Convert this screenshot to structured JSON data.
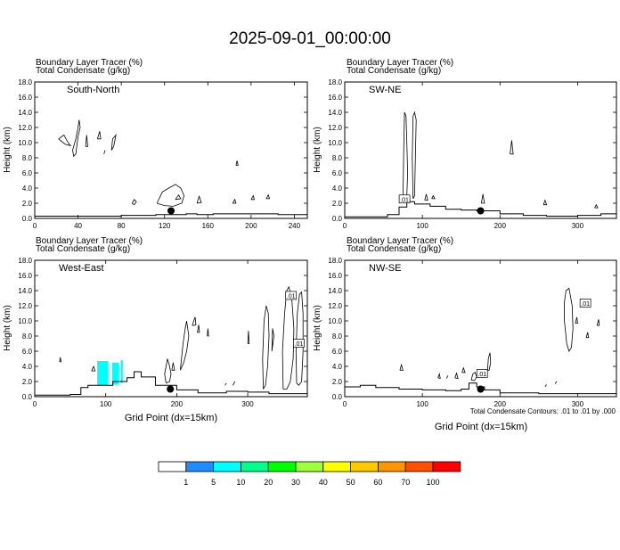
{
  "main_title": "2025-09-01_00:00:00",
  "panel_header": {
    "line1": "Boundary Layer Tracer   (%)",
    "line2": "Total Condensate   (g/kg)"
  },
  "xlabel": "Grid Point (dx=15km)",
  "ylabel": "Height (km)",
  "contour_note": "Total Condensate Contours: .01 to .01 by .000",
  "colorbar": {
    "levels": [
      "1",
      "5",
      "10",
      "20",
      "30",
      "40",
      "50",
      "60",
      "70",
      "100"
    ],
    "colors": [
      "#ffffff",
      "#1e8cff",
      "#00ffff",
      "#00ff8c",
      "#00ff00",
      "#a0ff3c",
      "#ffff00",
      "#ffc800",
      "#ff9600",
      "#ff5000",
      "#ff0000"
    ]
  },
  "chart_data": [
    {
      "type": "line",
      "title": "South-North",
      "xlim": [
        0,
        252
      ],
      "ylim": [
        0,
        18
      ],
      "xticks": [
        0,
        40,
        80,
        120,
        160,
        200,
        240
      ],
      "yticks": [
        0,
        2,
        4,
        6,
        8,
        10,
        12,
        14,
        16,
        18
      ],
      "terrain": [
        [
          0,
          0.3
        ],
        [
          60,
          0.3
        ],
        [
          80,
          0.4
        ],
        [
          100,
          0.4
        ],
        [
          112,
          0.5
        ],
        [
          125,
          0.5
        ],
        [
          140,
          0.6
        ],
        [
          150,
          0.5
        ],
        [
          165,
          0.6
        ],
        [
          200,
          0.6
        ],
        [
          225,
          0.5
        ],
        [
          252,
          0.5
        ]
      ],
      "marker": {
        "x": 126,
        "y": 1.0
      },
      "contour_labels": [],
      "tracer_fill": []
    },
    {
      "type": "line",
      "title": "SW-NE",
      "xlim": [
        0,
        350
      ],
      "ylim": [
        0,
        18
      ],
      "xticks": [
        0,
        100,
        200,
        300
      ],
      "yticks": [
        0,
        2,
        4,
        6,
        8,
        10,
        12,
        14,
        16,
        18
      ],
      "terrain": [
        [
          0,
          0.2
        ],
        [
          40,
          0.2
        ],
        [
          55,
          0.5
        ],
        [
          70,
          1.5
        ],
        [
          80,
          2.2
        ],
        [
          90,
          1.9
        ],
        [
          110,
          1.6
        ],
        [
          130,
          1.2
        ],
        [
          150,
          1.1
        ],
        [
          170,
          1.0
        ],
        [
          200,
          0.6
        ],
        [
          230,
          0.4
        ],
        [
          260,
          0.3
        ],
        [
          300,
          0.4
        ],
        [
          330,
          0.6
        ],
        [
          350,
          0.7
        ]
      ],
      "marker": {
        "x": 175,
        "y": 1.0
      },
      "contour_labels": [
        {
          "x": 77,
          "y": 2.5,
          "text": ".01"
        }
      ],
      "tracer_fill": []
    },
    {
      "type": "line",
      "title": "West-East",
      "xlim": [
        0,
        384
      ],
      "ylim": [
        0,
        18
      ],
      "xticks": [
        0,
        100,
        200,
        300
      ],
      "yticks": [
        0,
        2,
        4,
        6,
        8,
        10,
        12,
        14,
        16,
        18
      ],
      "terrain": [
        [
          0,
          0.2
        ],
        [
          50,
          0.3
        ],
        [
          65,
          1.2
        ],
        [
          75,
          1.5
        ],
        [
          90,
          1.5
        ],
        [
          110,
          2.0
        ],
        [
          130,
          2.5
        ],
        [
          140,
          3.3
        ],
        [
          150,
          2.6
        ],
        [
          170,
          1.5
        ],
        [
          200,
          0.9
        ],
        [
          230,
          0.5
        ],
        [
          270,
          0.7
        ],
        [
          300,
          0.6
        ],
        [
          330,
          0.4
        ],
        [
          360,
          0.4
        ],
        [
          384,
          0.4
        ]
      ],
      "marker": {
        "x": 191,
        "y": 1.0
      },
      "contour_labels": [
        {
          "x": 361,
          "y": 13.3,
          "text": ".01"
        },
        {
          "x": 372,
          "y": 7.0,
          "text": ".01"
        }
      ],
      "tracer_fill": [
        {
          "level": "5",
          "x": [
            88,
            103
          ],
          "y": [
            1.5,
            4.7
          ]
        },
        {
          "level": "5",
          "x": [
            109,
            118
          ],
          "y": [
            1.6,
            4.5
          ]
        },
        {
          "level": "5",
          "x": [
            121,
            124
          ],
          "y": [
            1.8,
            4.8
          ]
        }
      ]
    },
    {
      "type": "line",
      "title": "NW-SE",
      "xlim": [
        0,
        350
      ],
      "ylim": [
        0,
        18
      ],
      "xticks": [
        0,
        100,
        200,
        300
      ],
      "yticks": [
        0,
        2,
        4,
        6,
        8,
        10,
        12,
        14,
        16,
        18
      ],
      "terrain": [
        [
          0,
          1.3
        ],
        [
          20,
          1.5
        ],
        [
          40,
          1.2
        ],
        [
          70,
          1.0
        ],
        [
          100,
          0.9
        ],
        [
          130,
          0.8
        ],
        [
          150,
          1.0
        ],
        [
          160,
          1.8
        ],
        [
          170,
          1.3
        ],
        [
          180,
          0.9
        ],
        [
          200,
          0.5
        ],
        [
          250,
          0.4
        ],
        [
          300,
          0.4
        ],
        [
          350,
          0.4
        ]
      ],
      "marker": {
        "x": 175,
        "y": 1.0
      },
      "contour_labels": [
        {
          "x": 177,
          "y": 3.0,
          "text": ".01"
        },
        {
          "x": 310,
          "y": 12.3,
          "text": ".01"
        }
      ],
      "tracer_fill": []
    }
  ]
}
